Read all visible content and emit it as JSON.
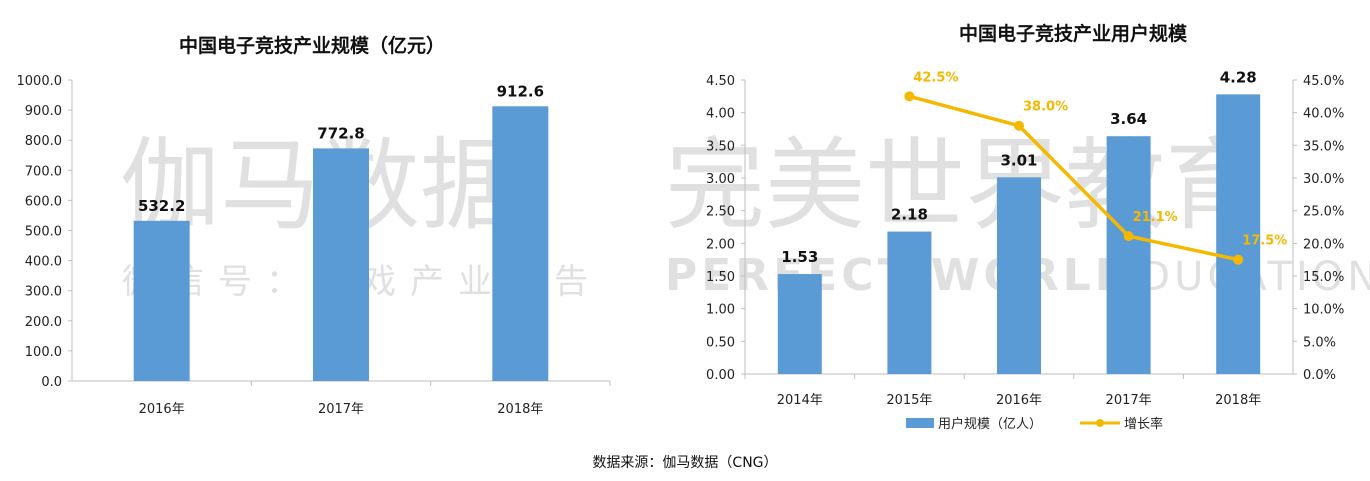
{
  "colors": {
    "bar": "#5b9bd5",
    "line": "#f5b800",
    "axis": "#bfbfbf"
  },
  "watermark": {
    "left_big": "伽马数据",
    "left_small": "微信号：游戏产业报告",
    "right_big": "完美世界教育",
    "right_en": "PERFECT WORLD",
    "right_en2": "EDUCATION"
  },
  "source": "数据来源：伽马数据（CNG）",
  "chart_data": [
    {
      "type": "bar",
      "title": "中国电子竞技产业规模（亿元）",
      "categories": [
        "2016年",
        "2017年",
        "2018年"
      ],
      "values": [
        532.2,
        772.8,
        912.6
      ],
      "value_labels": [
        "532.2",
        "772.8",
        "912.6"
      ],
      "ylim": [
        0,
        1000
      ],
      "yticks": [
        "0.0",
        "100.0",
        "200.0",
        "300.0",
        "400.0",
        "500.0",
        "600.0",
        "700.0",
        "800.0",
        "900.0",
        "1000.0"
      ],
      "grid": false
    },
    {
      "type": "bar+line",
      "title": "中国电子竞技产业用户规模",
      "categories": [
        "2014年",
        "2015年",
        "2016年",
        "2017年",
        "2018年"
      ],
      "series": [
        {
          "name": "用户规模（亿人）",
          "type": "bar",
          "axis": "left",
          "values": [
            1.53,
            2.18,
            3.01,
            3.64,
            4.28
          ],
          "value_labels": [
            "1.53",
            "2.18",
            "3.01",
            "3.64",
            "4.28"
          ]
        },
        {
          "name": "增长率",
          "type": "line",
          "axis": "right",
          "x": [
            "2015年",
            "2016年",
            "2017年",
            "2018年"
          ],
          "values": [
            42.5,
            38.0,
            21.1,
            17.5
          ],
          "value_labels": [
            "42.5%",
            "38.0%",
            "21.1%",
            "17.5%"
          ]
        }
      ],
      "ylim_left": [
        0,
        4.5
      ],
      "yticks_left": [
        "0.00",
        "0.50",
        "1.00",
        "1.50",
        "2.00",
        "2.50",
        "3.00",
        "3.50",
        "4.00",
        "4.50"
      ],
      "ylim_right": [
        0,
        45
      ],
      "yticks_right": [
        "0.0%",
        "5.0%",
        "10.0%",
        "15.0%",
        "20.0%",
        "25.0%",
        "30.0%",
        "35.0%",
        "40.0%",
        "45.0%"
      ],
      "legend": "bottom",
      "grid": false
    }
  ]
}
